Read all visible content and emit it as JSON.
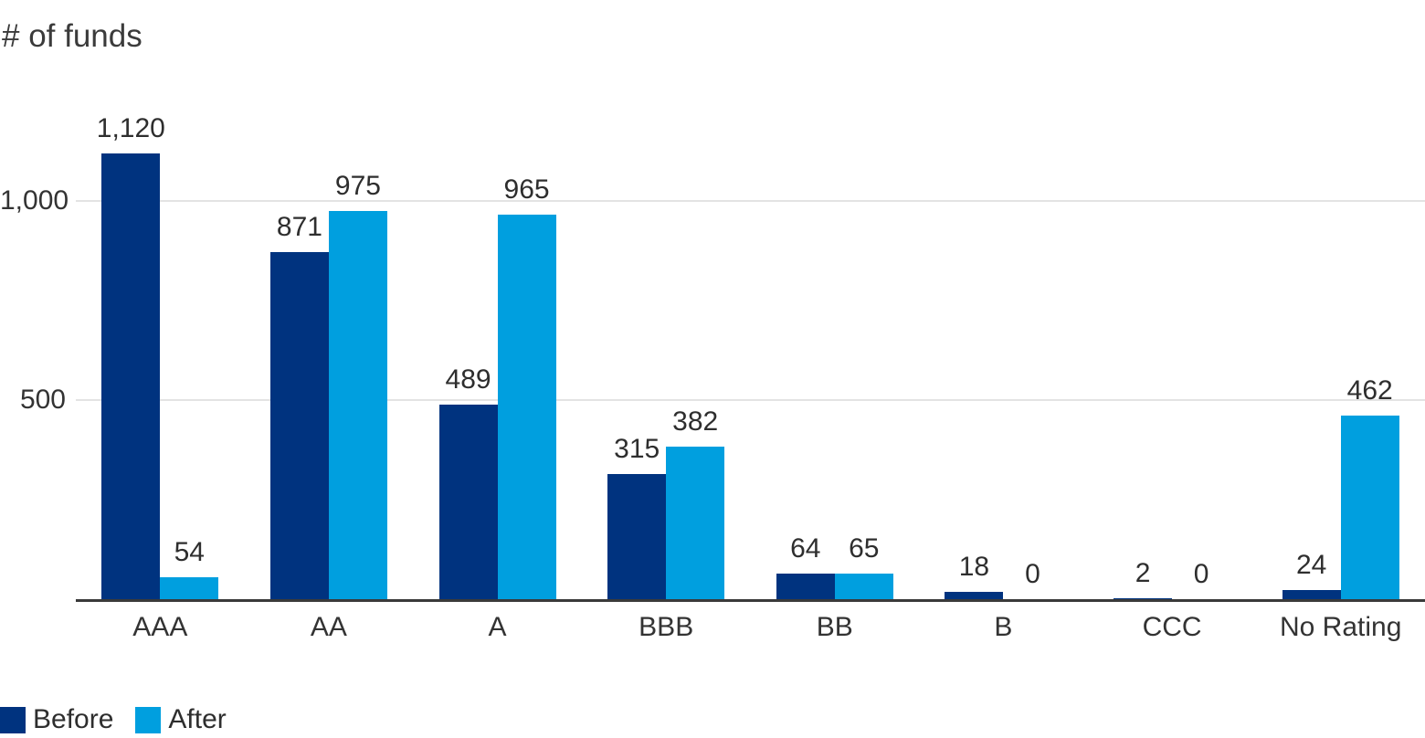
{
  "title": "# of funds",
  "colors": {
    "before": "#00337F",
    "after": "#009FDF",
    "gridline": "#E3E3E3",
    "axis": "#3A3A3A",
    "text": "#333333"
  },
  "legend": {
    "position": "bottom-left",
    "items": [
      {
        "label": "Before",
        "color": "#00337F"
      },
      {
        "label": "After",
        "color": "#009FDF"
      }
    ]
  },
  "chart_data": {
    "type": "bar",
    "title": "# of funds",
    "categories": [
      "AAA",
      "AA",
      "A",
      "BBB",
      "BB",
      "B",
      "CCC",
      "No Rating"
    ],
    "series": [
      {
        "name": "Before",
        "color": "#00337F",
        "values": [
          1120,
          871,
          489,
          315,
          64,
          18,
          2,
          24
        ],
        "labels": [
          "1,120",
          "871",
          "489",
          "315",
          "64",
          "18",
          "2",
          "24"
        ]
      },
      {
        "name": "After",
        "color": "#009FDF",
        "values": [
          54,
          975,
          965,
          382,
          65,
          0,
          0,
          462
        ],
        "labels": [
          "54",
          "975",
          "965",
          "382",
          "65",
          "0",
          "0",
          "462"
        ]
      }
    ],
    "xlabel": "",
    "ylabel": "# of funds",
    "ylim": [
      0,
      1280
    ],
    "y_ticks": [
      {
        "value": 500,
        "label": "500"
      },
      {
        "value": 1000,
        "label": "1,000"
      }
    ],
    "grid": "horizontal",
    "value_labels_shown": true,
    "legend_position": "bottom-left"
  }
}
